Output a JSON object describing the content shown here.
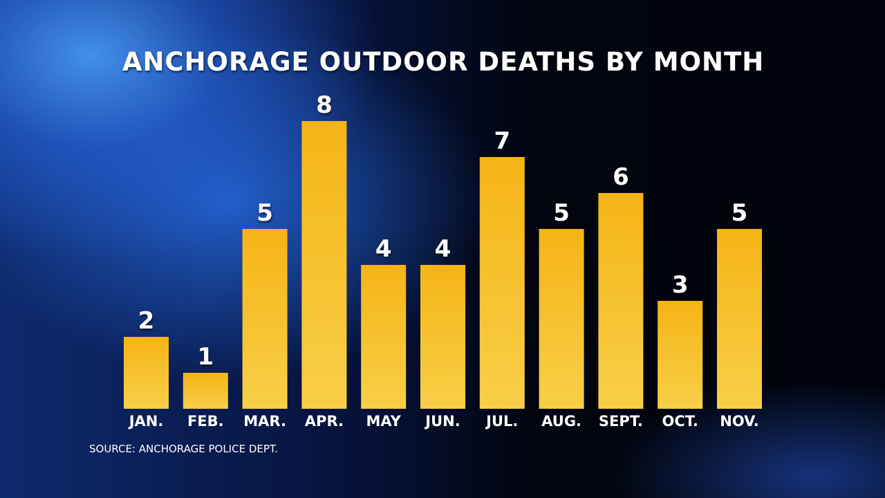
{
  "chart_data": {
    "type": "bar",
    "title": "ANCHORAGE OUTDOOR DEATHS BY MONTH",
    "categories": [
      "JAN.",
      "FEB.",
      "MAR.",
      "APR.",
      "MAY",
      "JUN.",
      "JUL.",
      "AUG.",
      "SEPT.",
      "OCT.",
      "NOV."
    ],
    "values": [
      2,
      1,
      5,
      8,
      4,
      4,
      7,
      5,
      6,
      3,
      5
    ],
    "xlabel": "",
    "ylabel": "",
    "ylim": [
      0,
      8
    ],
    "grid": false,
    "data_labels": true,
    "source": "SOURCE:  ANCHORAGE POLICE DEPT.",
    "colors": {
      "bar_top": "#f5b416",
      "bar_bottom": "#f8cf48",
      "text": "#ffffff"
    }
  }
}
